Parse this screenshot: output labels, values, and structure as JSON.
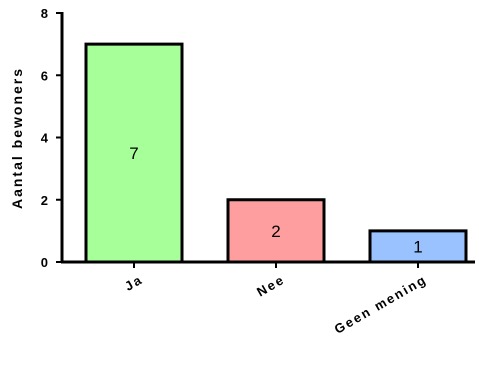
{
  "chart_data": {
    "type": "bar",
    "categories": [
      "Ja",
      "Nee",
      "Geen mening"
    ],
    "values": [
      7,
      2,
      1
    ],
    "data_labels": [
      "7",
      "2",
      "1"
    ],
    "colors": [
      "#a6ff99",
      "#ff9e9e",
      "#99c2ff"
    ],
    "ylabel": "Aantal bewoners",
    "ylim": [
      0,
      8
    ],
    "yticks": [
      0,
      2,
      4,
      6,
      8
    ],
    "grid": false,
    "legend": "none"
  }
}
